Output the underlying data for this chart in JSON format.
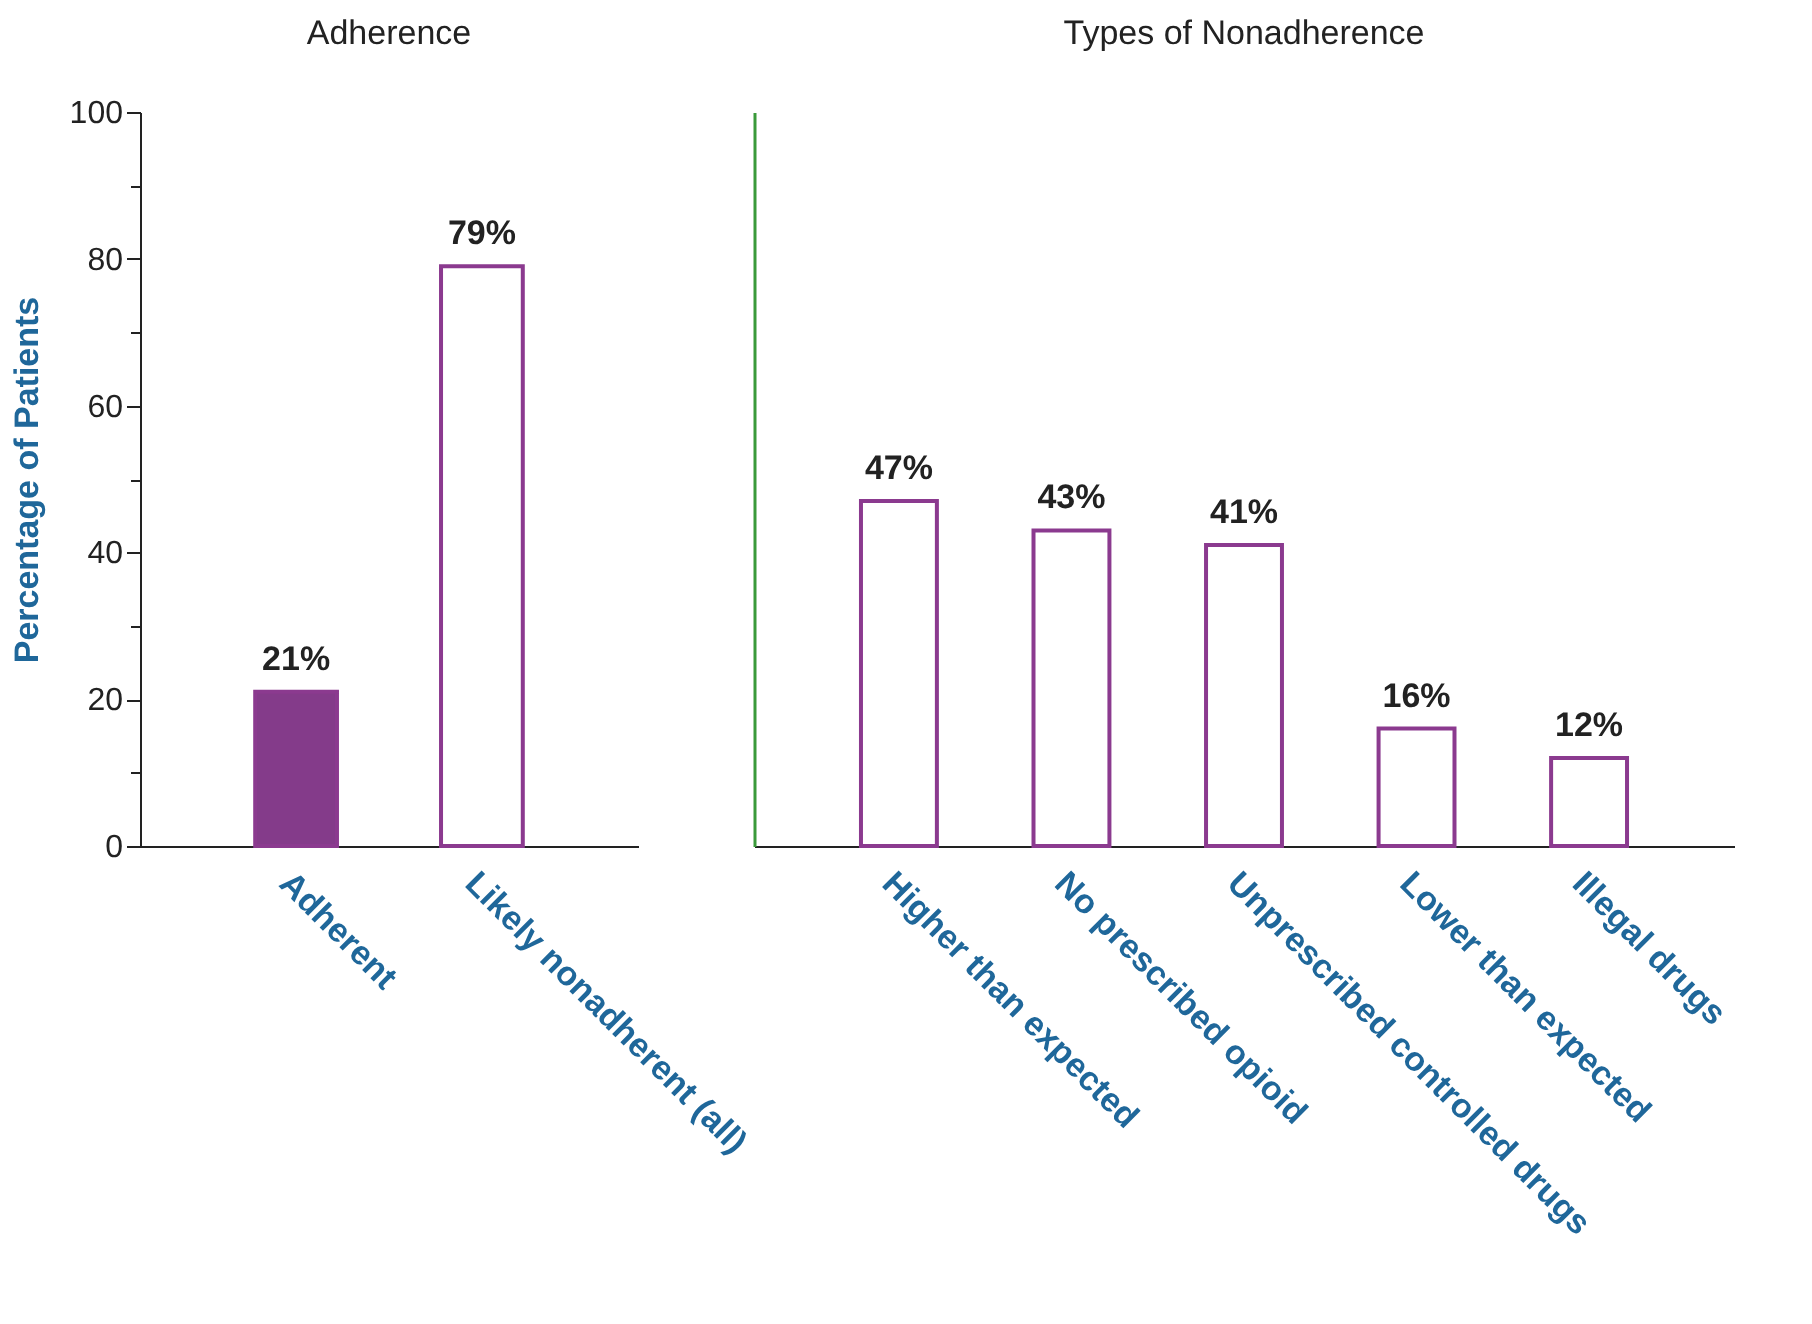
{
  "chart_data": [
    {
      "type": "bar",
      "title": "Adherence",
      "ylabel": "Percentage of Patients",
      "categories": [
        "Adherent",
        "Likely nonadherent (all)"
      ],
      "values": [
        21,
        79
      ],
      "colors": [
        "#843b8a",
        "#ffffff"
      ],
      "value_labels": [
        "21%",
        "79%"
      ],
      "ylim": [
        0,
        100
      ],
      "yticks": [
        0,
        {
          "value": 10,
          "label": null
        },
        20,
        {
          "value": 30,
          "label": null
        },
        40,
        {
          "value": 50,
          "label": null
        },
        60,
        {
          "value": 70,
          "label": null
        },
        80,
        {
          "value": 90,
          "label": null
        },
        100
      ]
    },
    {
      "type": "bar",
      "title": "Types of Nonadherence",
      "categories": [
        "Higher than expected",
        "No prescribed opioid",
        "Unprescribed controlled drugs",
        "Lower than expected",
        "Illegal drugs"
      ],
      "values": [
        47,
        43,
        41,
        16,
        12
      ],
      "colors": [
        "#ffffff",
        "#ffffff",
        "#ffffff",
        "#ffffff",
        "#ffffff"
      ],
      "value_labels": [
        "47%",
        "43%",
        "41%",
        "16%",
        "12%"
      ],
      "ylim": [
        0,
        100
      ],
      "tick_labels": "x"
    }
  ]
}
